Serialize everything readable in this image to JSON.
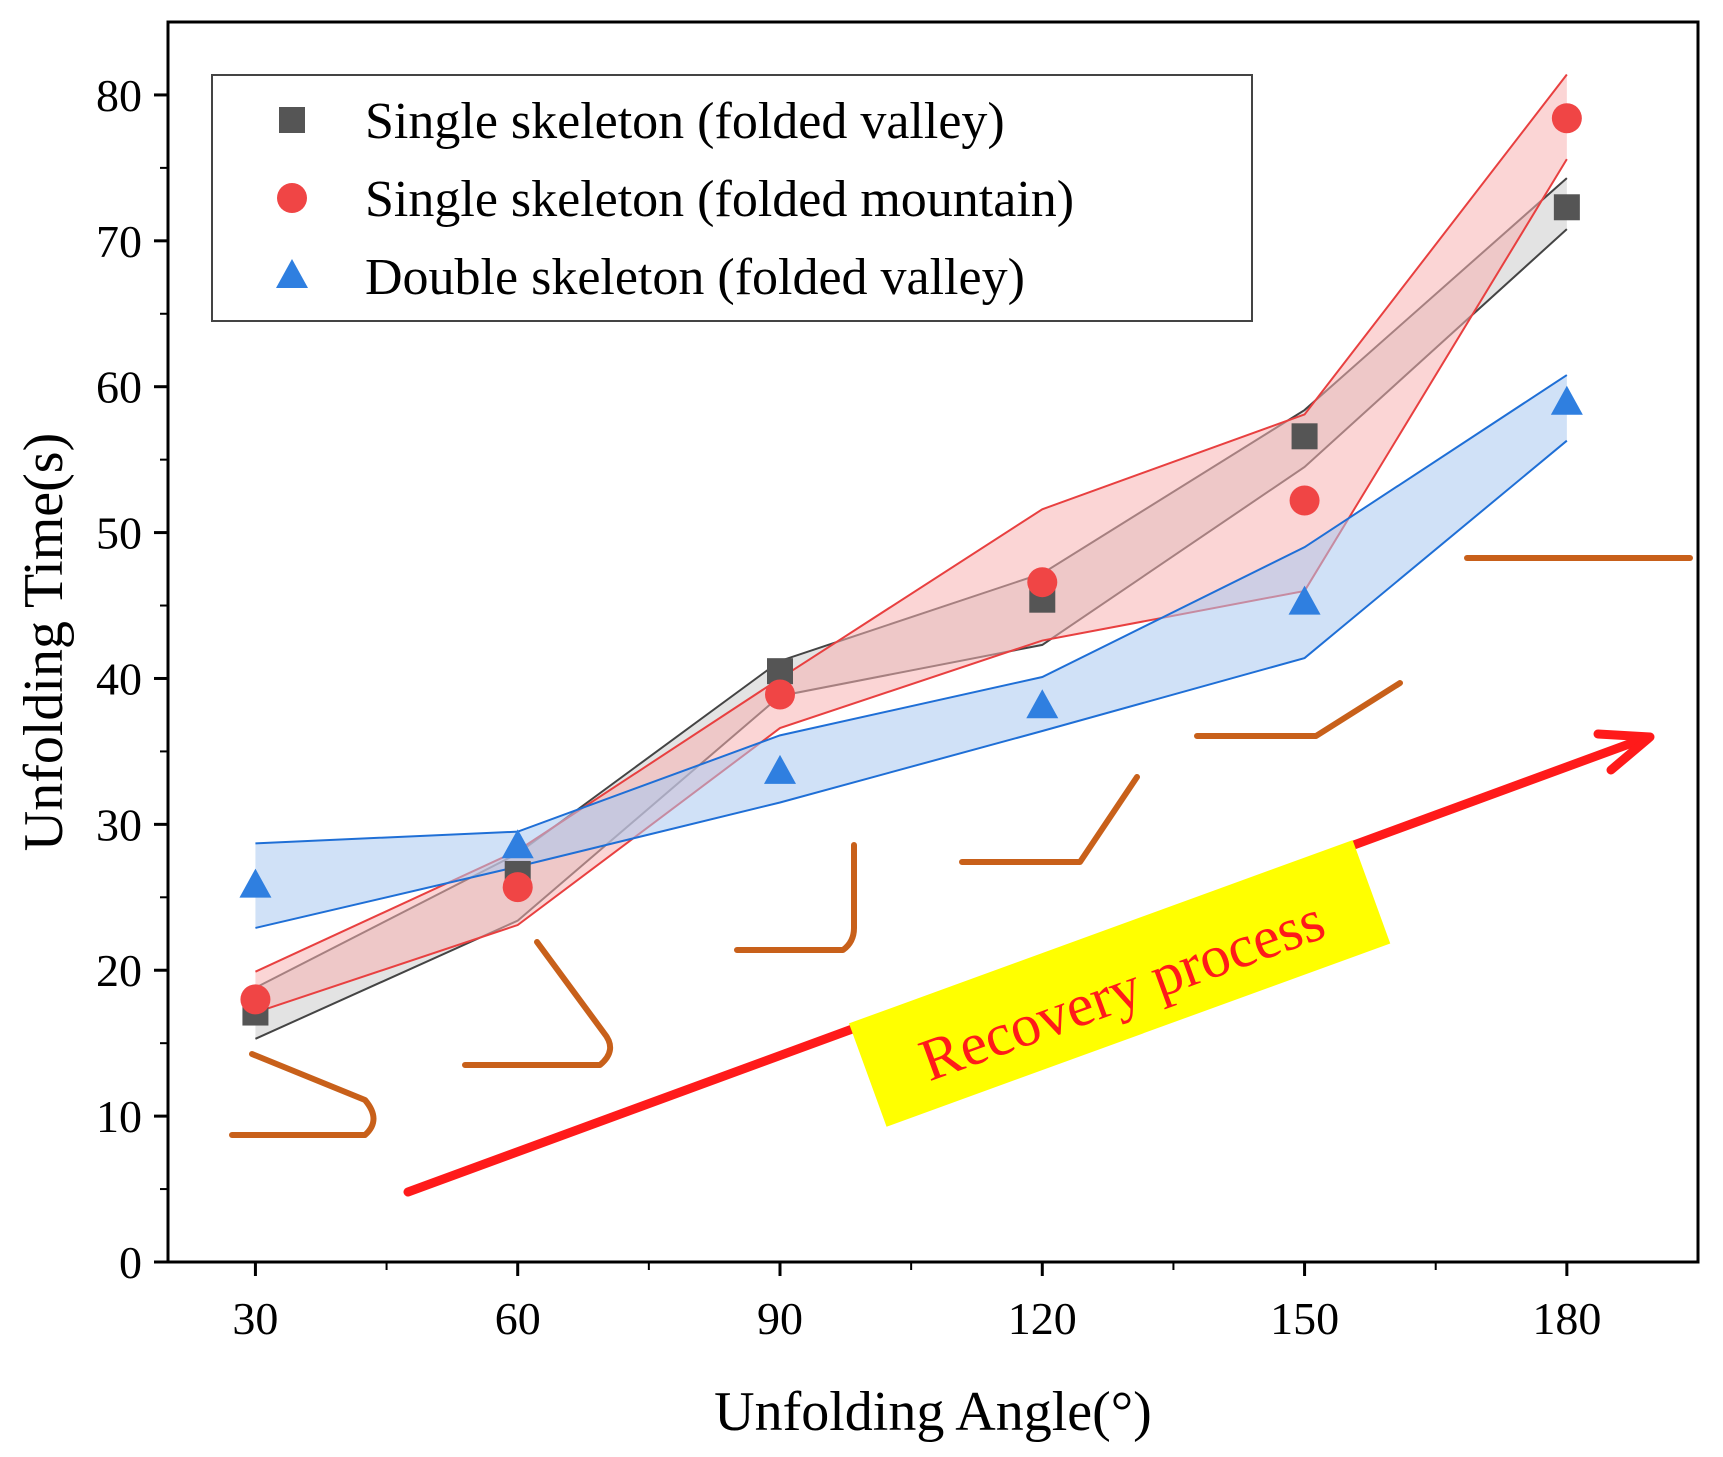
{
  "chart_data": {
    "type": "scatter",
    "title": "",
    "xlabel": "Unfolding Angle(°)",
    "ylabel": "Unfolding Time(s)",
    "xlim": [
      20,
      195
    ],
    "ylim": [
      0,
      85
    ],
    "x_ticks": [
      30,
      60,
      90,
      120,
      150,
      180
    ],
    "y_ticks": [
      0,
      10,
      20,
      30,
      40,
      50,
      60,
      70,
      80
    ],
    "x_tick_labels": [
      "30",
      "60",
      "90",
      "120",
      "150",
      "180"
    ],
    "y_tick_labels": [
      "0",
      "10",
      "20",
      "30",
      "40",
      "50",
      "60",
      "70",
      "80"
    ],
    "legend_position": "top-left",
    "series": [
      {
        "name": "Single skeleton (folded valley)",
        "marker": "square",
        "color": "#555555",
        "band_fill": "#cccccc",
        "band_edge": "#444444",
        "x": [
          30,
          60,
          90,
          120,
          150,
          180
        ],
        "y": [
          17.1,
          26.6,
          40.5,
          45.4,
          56.6,
          72.3
        ],
        "band_upper": [
          18.8,
          28.0,
          41.2,
          47.2,
          58.4,
          74.3
        ],
        "band_lower": [
          15.3,
          23.4,
          38.8,
          42.3,
          54.5,
          70.8
        ]
      },
      {
        "name": "Single skeleton (folded mountain)",
        "marker": "circle",
        "color": "#f04545",
        "band_fill": "#f7b3b3",
        "band_edge": "#e84040",
        "x": [
          30,
          60,
          90,
          120,
          150,
          180
        ],
        "y": [
          18.0,
          25.7,
          38.9,
          46.6,
          52.2,
          78.4
        ],
        "band_upper": [
          19.9,
          28.2,
          40.0,
          51.6,
          58.1,
          81.4
        ],
        "band_lower": [
          17.1,
          23.1,
          36.6,
          42.6,
          46.0,
          75.6
        ]
      },
      {
        "name": "Double skeleton (folded valley)",
        "marker": "triangle",
        "color": "#2f7fe0",
        "band_fill": "#a9c9f0",
        "band_edge": "#1f6fd6",
        "x": [
          30,
          60,
          90,
          120,
          150,
          180
        ],
        "y": [
          25.8,
          28.5,
          33.6,
          38.1,
          45.2,
          58.9
        ],
        "band_upper": [
          28.7,
          29.5,
          36.1,
          40.1,
          49.0,
          60.8
        ],
        "band_lower": [
          22.9,
          27.1,
          31.5,
          36.4,
          41.4,
          56.3
        ]
      }
    ],
    "annotations": [
      {
        "text": "Recovery process",
        "color": "#ff1a1a",
        "highlight": "#ffff00"
      }
    ],
    "colors": {
      "arrow": "#ff1a1a",
      "fold_glyph": "#c8601a",
      "axis": "#000000"
    }
  }
}
